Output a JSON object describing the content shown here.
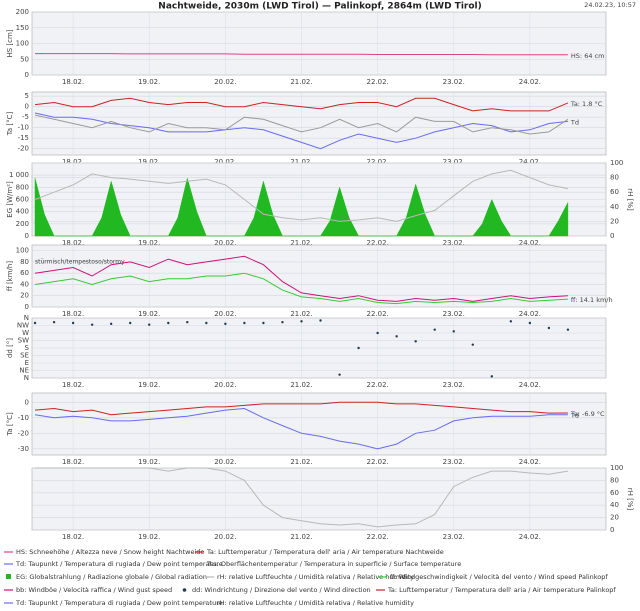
{
  "title": "Nachtweide, 2030m (LWD Tirol) — Palinkopf, 2864m (LWD Tirol)",
  "timestamp": "24.02.23, 10:57",
  "chart_data": [
    {
      "type": "line",
      "y_label": "HS [cm]",
      "xlim": [
        17.46,
        25.0
      ],
      "x": [
        17.5,
        17.75,
        18,
        18.25,
        18.5,
        18.75,
        19,
        19.25,
        19.5,
        19.75,
        20,
        20.25,
        20.5,
        20.75,
        21,
        21.25,
        21.5,
        21.75,
        22,
        22.25,
        22.5,
        22.75,
        23,
        23.25,
        23.5,
        23.75,
        24,
        24.25,
        24.5
      ],
      "xticks": [
        {
          "value": 18,
          "label": "18.02."
        },
        {
          "value": 19,
          "label": "19.02."
        },
        {
          "value": 20,
          "label": "20.02."
        },
        {
          "value": 21,
          "label": "21.02."
        },
        {
          "value": 22,
          "label": "22.02."
        },
        {
          "value": 23,
          "label": "23.02."
        },
        {
          "value": 24,
          "label": "24.02."
        }
      ],
      "ylim": [
        0,
        200
      ],
      "yticks": [
        0,
        50,
        100,
        150,
        200
      ],
      "series": [
        {
          "name": "HS: Schneehöhe / Altezza neve / Snow height  Nachtweide",
          "color": "#e0408a",
          "end_label": "HS: 64 cm",
          "values": [
            68,
            68,
            68,
            68,
            68,
            67,
            67,
            67,
            67,
            67,
            67,
            66,
            66,
            66,
            66,
            66,
            66,
            66,
            65,
            65,
            65,
            65,
            65,
            65,
            64,
            64,
            64,
            64,
            64
          ]
        }
      ]
    },
    {
      "type": "line",
      "y_label": "Ta [°C]",
      "xlim": [
        17.46,
        25.0
      ],
      "x": [
        17.5,
        17.75,
        18,
        18.25,
        18.5,
        18.75,
        19,
        19.25,
        19.5,
        19.75,
        20,
        20.25,
        20.5,
        20.75,
        21,
        21.25,
        21.5,
        21.75,
        22,
        22.25,
        22.5,
        22.75,
        23,
        23.25,
        23.5,
        23.75,
        24,
        24.25,
        24.5
      ],
      "xticks": [
        {
          "value": 18,
          "label": "18.02."
        },
        {
          "value": 19,
          "label": "19.02."
        },
        {
          "value": 20,
          "label": "20.02."
        },
        {
          "value": 21,
          "label": "21.02."
        },
        {
          "value": 22,
          "label": "22.02."
        },
        {
          "value": 23,
          "label": "23.02."
        },
        {
          "value": 24,
          "label": "24.02."
        }
      ],
      "ylim": [
        -23,
        7
      ],
      "yticks": [
        5,
        0,
        -5,
        -10,
        -15,
        -20
      ],
      "series": [
        {
          "name": "Ta: Lufttemperatur / Temperatura dell' aria / Air temperature  Nachtweide",
          "color": "#cc2222",
          "end_label": "Ta: 1.8 °C",
          "values": [
            1,
            2,
            0,
            0,
            3,
            4,
            2,
            1,
            2,
            2,
            0,
            0,
            2,
            1,
            0,
            -1,
            1,
            2,
            2,
            0,
            4,
            4,
            1,
            -2,
            -1,
            -2,
            -2,
            -2,
            1.8
          ]
        },
        {
          "name": "Td: Taupunkt / Temperatura di rugiada / Dew point temperature",
          "color": "#6a6af0",
          "end_label": "Td",
          "values": [
            -3,
            -5,
            -5,
            -6,
            -8,
            -9,
            -10,
            -12,
            -12,
            -12,
            -11,
            -10,
            -11,
            -14,
            -17,
            -20,
            -16,
            -13,
            -15,
            -17,
            -15,
            -12,
            -10,
            -8,
            -9,
            -12,
            -11,
            -8,
            -7
          ]
        },
        {
          "name": "Tss: Oberflächentemperatur / Temperatura in superficie / Surface temperature",
          "color": "#9a9a9a",
          "values": [
            -4,
            -6,
            -8,
            -10,
            -7,
            -10,
            -12,
            -8,
            -10,
            -10,
            -11,
            -5,
            -6,
            -9,
            -12,
            -10,
            -6,
            -10,
            -8,
            -12,
            -5,
            -7,
            -7,
            -12,
            -10,
            -11,
            -13,
            -12,
            -6
          ]
        }
      ]
    },
    {
      "type": "line",
      "y_label": "EG [W/m²]",
      "y2_label": "rH [%]",
      "xlim": [
        17.46,
        25.0
      ],
      "x": [
        17.5,
        17.75,
        18,
        18.25,
        18.5,
        18.75,
        19,
        19.25,
        19.5,
        19.75,
        20,
        20.25,
        20.5,
        20.75,
        21,
        21.25,
        21.5,
        21.75,
        22,
        22.25,
        22.5,
        22.75,
        23,
        23.25,
        23.5,
        23.75,
        24,
        24.25,
        24.5
      ],
      "xticks": [
        {
          "value": 18,
          "label": "18.02."
        },
        {
          "value": 19,
          "label": "19.02."
        },
        {
          "value": 20,
          "label": "20.02."
        },
        {
          "value": 21,
          "label": "21.02."
        },
        {
          "value": 22,
          "label": "22.02."
        },
        {
          "value": 23,
          "label": "23.02."
        },
        {
          "value": 24,
          "label": "24.02."
        }
      ],
      "ylim": [
        0,
        1200
      ],
      "yticks": [
        0,
        200,
        400,
        600,
        800,
        {
          "value": 1000,
          "label": "1 000"
        }
      ],
      "y2lim": [
        0,
        100
      ],
      "y2ticks": [
        0,
        20,
        40,
        60,
        80,
        100
      ],
      "series": [
        {
          "name": "EG: Globalstrahlung / Radiazione globale / Global radiation",
          "color": "#22b822",
          "type": "area",
          "x": [
            17.5,
            17.625,
            17.75,
            17.875,
            18,
            18.125,
            18.25,
            18.375,
            18.5,
            18.625,
            18.75,
            18.875,
            19,
            19.125,
            19.25,
            19.375,
            19.5,
            19.625,
            19.75,
            19.875,
            20,
            20.125,
            20.25,
            20.375,
            20.5,
            20.625,
            20.75,
            20.875,
            21,
            21.125,
            21.25,
            21.375,
            21.5,
            21.625,
            21.75,
            21.875,
            22,
            22.125,
            22.25,
            22.375,
            22.5,
            22.625,
            22.75,
            22.875,
            23,
            23.125,
            23.25,
            23.375,
            23.5,
            23.625,
            23.75,
            23.875,
            24,
            24.125,
            24.25,
            24.375,
            24.5
          ],
          "values": [
            950,
            350,
            0,
            0,
            0,
            0,
            0,
            300,
            900,
            350,
            0,
            0,
            0,
            0,
            0,
            300,
            950,
            400,
            0,
            0,
            0,
            0,
            0,
            300,
            900,
            350,
            0,
            0,
            0,
            0,
            0,
            250,
            800,
            300,
            0,
            0,
            0,
            0,
            0,
            300,
            850,
            350,
            0,
            0,
            0,
            0,
            0,
            200,
            600,
            250,
            0,
            0,
            0,
            0,
            0,
            250,
            550
          ]
        },
        {
          "name": "rH: relative Luftfeuchte / Umidità relativa / Relative humidity",
          "color": "#b8b8b8",
          "axis": "y2",
          "values": [
            50,
            60,
            70,
            85,
            80,
            78,
            75,
            72,
            75,
            78,
            70,
            50,
            30,
            25,
            22,
            25,
            20,
            22,
            25,
            20,
            28,
            35,
            55,
            75,
            85,
            90,
            80,
            70,
            65
          ]
        }
      ]
    },
    {
      "type": "line",
      "y_label": "ff [km/h]",
      "xlim": [
        17.46,
        25.0
      ],
      "x": [
        17.5,
        17.75,
        18,
        18.25,
        18.5,
        18.75,
        19,
        19.25,
        19.5,
        19.75,
        20,
        20.25,
        20.5,
        20.75,
        21,
        21.25,
        21.5,
        21.75,
        22,
        22.25,
        22.5,
        22.75,
        23,
        23.25,
        23.5,
        23.75,
        24,
        24.25,
        24.5
      ],
      "xticks": [
        {
          "value": 18,
          "label": "18.02."
        },
        {
          "value": 19,
          "label": "19.02."
        },
        {
          "value": 20,
          "label": "20.02."
        },
        {
          "value": 21,
          "label": "21.02."
        },
        {
          "value": 22,
          "label": "22.02."
        },
        {
          "value": 23,
          "label": "23.02."
        },
        {
          "value": 24,
          "label": "24.02."
        }
      ],
      "ylim": [
        0,
        110
      ],
      "yticks": [
        0,
        20,
        40,
        60,
        80,
        100
      ],
      "annotations": [
        "stürmisch/tempestoso/stormy"
      ],
      "series": [
        {
          "name": "bb: Windböe / Velocità raffica / Wind gust speed",
          "color": "#cc1177",
          "values": [
            60,
            65,
            70,
            55,
            75,
            80,
            70,
            85,
            75,
            80,
            85,
            90,
            75,
            45,
            25,
            20,
            15,
            20,
            12,
            10,
            15,
            12,
            15,
            10,
            15,
            20,
            15,
            18,
            20
          ]
        },
        {
          "name": "ff: Windgeschwindigkeit / Velocità del vento / Wind speed  Palinkopf",
          "color": "#33cc33",
          "end_label": "ff: 14.1 km/h",
          "values": [
            40,
            45,
            50,
            40,
            50,
            55,
            45,
            50,
            50,
            55,
            55,
            60,
            50,
            30,
            18,
            15,
            10,
            15,
            8,
            6,
            10,
            8,
            10,
            8,
            10,
            15,
            10,
            12,
            14.1
          ]
        }
      ]
    },
    {
      "type": "scatter",
      "y_label": "dd [°]",
      "xlim": [
        17.46,
        25.0
      ],
      "x": [
        17.5,
        17.75,
        18,
        18.25,
        18.5,
        18.75,
        19,
        19.25,
        19.5,
        19.75,
        20,
        20.25,
        20.5,
        20.75,
        21,
        21.25,
        21.5,
        21.75,
        22,
        22.25,
        22.5,
        22.75,
        23,
        23.25,
        23.5,
        23.75,
        24,
        24.25,
        24.5
      ],
      "xticks": [
        {
          "value": 18,
          "label": "18.02."
        },
        {
          "value": 19,
          "label": "19.02."
        },
        {
          "value": 20,
          "label": "20.02."
        },
        {
          "value": 21,
          "label": "21.02."
        },
        {
          "value": 22,
          "label": "22.02."
        },
        {
          "value": 23,
          "label": "23.02."
        },
        {
          "value": 24,
          "label": "24.02."
        }
      ],
      "ylim": [
        0,
        360
      ],
      "yticks": [
        {
          "value": 0,
          "label": "N"
        },
        {
          "value": 45,
          "label": "NE"
        },
        {
          "value": 90,
          "label": "E"
        },
        {
          "value": 135,
          "label": "SE"
        },
        {
          "value": 180,
          "label": "S"
        },
        {
          "value": 225,
          "label": "SW"
        },
        {
          "value": 270,
          "label": "W"
        },
        {
          "value": 315,
          "label": "NW"
        },
        {
          "value": 360,
          "label": "N"
        }
      ],
      "series": [
        {
          "name": "dd: Windrichtung / Direzione del vento / Wind direction",
          "color": "#1f3a55",
          "values": [
            330,
            335,
            330,
            320,
            325,
            330,
            320,
            330,
            335,
            330,
            325,
            330,
            330,
            335,
            340,
            345,
            20,
            180,
            270,
            250,
            220,
            290,
            280,
            200,
            10,
            340,
            330,
            300,
            290
          ]
        }
      ]
    },
    {
      "type": "line",
      "y_label": "Ta [°C]",
      "xlim": [
        17.46,
        25.0
      ],
      "x": [
        17.5,
        17.75,
        18,
        18.25,
        18.5,
        18.75,
        19,
        19.25,
        19.5,
        19.75,
        20,
        20.25,
        20.5,
        20.75,
        21,
        21.25,
        21.5,
        21.75,
        22,
        22.25,
        22.5,
        22.75,
        23,
        23.25,
        23.5,
        23.75,
        24,
        24.25,
        24.5
      ],
      "xticks": [
        {
          "value": 18,
          "label": "18.02."
        },
        {
          "value": 19,
          "label": "19.02."
        },
        {
          "value": 20,
          "label": "20.02."
        },
        {
          "value": 21,
          "label": "21.02."
        },
        {
          "value": 22,
          "label": "22.02."
        },
        {
          "value": 23,
          "label": "23.02."
        },
        {
          "value": 24,
          "label": "24.02."
        }
      ],
      "ylim": [
        -34,
        6
      ],
      "yticks": [
        0,
        -10,
        -20,
        -30
      ],
      "series": [
        {
          "name": "Ta: Lufttemperatur / Temperatura dell' aria / Air temperature  Palinkopf",
          "color": "#cc2222",
          "end_label": "Ta: -6.9 °C",
          "values": [
            -5,
            -4,
            -6,
            -5,
            -8,
            -7,
            -6,
            -5,
            -4,
            -3,
            -3,
            -2,
            -1,
            -1,
            -1,
            -1,
            0,
            0,
            0,
            -1,
            -1,
            -2,
            -3,
            -4,
            -5,
            -6,
            -6,
            -7,
            -6.9
          ]
        },
        {
          "name": "Td: Taupunkt / Temperatura di rugiada / Dew point temperature",
          "color": "#6a6af0",
          "end_label": "Td",
          "values": [
            -8,
            -10,
            -9,
            -10,
            -12,
            -12,
            -11,
            -10,
            -9,
            -7,
            -5,
            -4,
            -10,
            -15,
            -20,
            -22,
            -25,
            -27,
            -30,
            -27,
            -20,
            -18,
            -12,
            -10,
            -9,
            -9,
            -9,
            -8,
            -8
          ]
        }
      ]
    },
    {
      "type": "line",
      "y2_label": "rH [%]",
      "xlim": [
        17.46,
        25.0
      ],
      "x": [
        17.5,
        17.75,
        18,
        18.25,
        18.5,
        18.75,
        19,
        19.25,
        19.5,
        19.75,
        20,
        20.25,
        20.5,
        20.75,
        21,
        21.25,
        21.5,
        21.75,
        22,
        22.25,
        22.5,
        22.75,
        23,
        23.25,
        23.5,
        23.75,
        24,
        24.25,
        24.5
      ],
      "xticks": [
        {
          "value": 18,
          "label": "18.02."
        },
        {
          "value": 19,
          "label": "19.02."
        },
        {
          "value": 20,
          "label": "20.02."
        },
        {
          "value": 21,
          "label": "21.02."
        },
        {
          "value": 22,
          "label": "22.02."
        },
        {
          "value": 23,
          "label": "23.02."
        },
        {
          "value": 24,
          "label": "24.02."
        }
      ],
      "y2lim": [
        0,
        100
      ],
      "y2ticks": [
        0,
        20,
        40,
        60,
        80,
        100
      ],
      "series": [
        {
          "name": "rH: relative Luftfeuchte / Umidità relativa / Relative humidity",
          "color": "#b8b8b8",
          "axis": "y2",
          "values": [
            100,
            100,
            100,
            100,
            100,
            100,
            100,
            95,
            100,
            100,
            95,
            80,
            40,
            20,
            15,
            10,
            8,
            10,
            5,
            8,
            10,
            25,
            70,
            85,
            95,
            95,
            92,
            90,
            95
          ]
        }
      ]
    }
  ]
}
